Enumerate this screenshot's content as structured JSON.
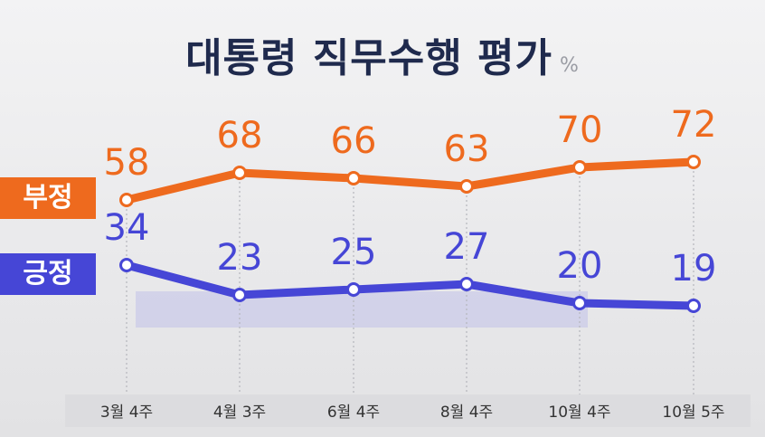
{
  "title": "대통령 직무수행 평가",
  "title_unit": "%",
  "legend": {
    "negative": "부정",
    "positive": "긍정"
  },
  "colors": {
    "negative": "#ee6a1e",
    "positive": "#4646d6"
  },
  "chart_data": {
    "type": "line",
    "title": "대통령 직무수행 평가",
    "x": [
      "3월 4주",
      "4월 3주",
      "6월 4주",
      "8월 4주",
      "10월 4주",
      "10월 5주"
    ],
    "series": [
      {
        "name": "부정",
        "values": [
          58,
          68,
          66,
          63,
          70,
          72
        ]
      },
      {
        "name": "긍정",
        "values": [
          34,
          23,
          25,
          27,
          20,
          19
        ]
      }
    ],
    "unit": "%",
    "legend_position": "left",
    "grid": false
  }
}
